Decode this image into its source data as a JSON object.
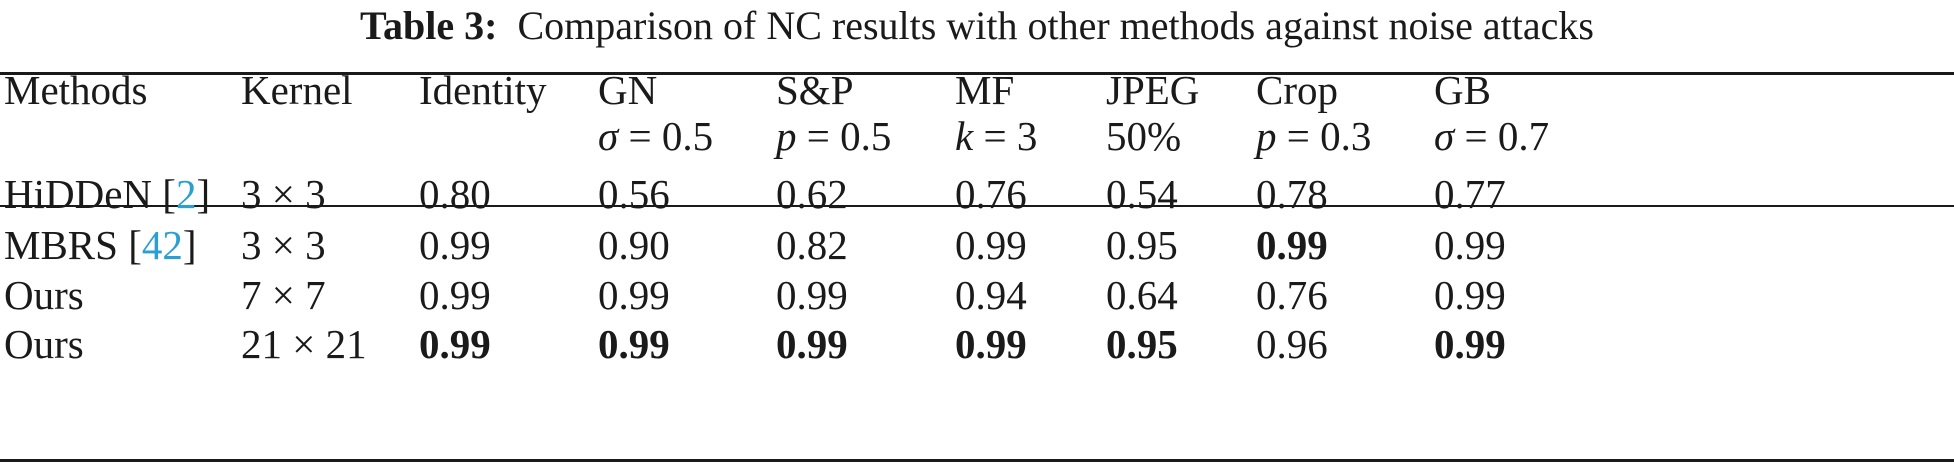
{
  "caption": {
    "label": "Table 3:",
    "text": "Comparison of NC results with other methods against noise attacks"
  },
  "header": {
    "methods": "Methods",
    "kernel": "Kernel",
    "identity": "Identity",
    "gn": "GN",
    "gn_param_var": "σ",
    "gn_param_val": " = 0.5",
    "sp": "S&P",
    "sp_param_var": "p",
    "sp_param_val": " = 0.5",
    "mf": "MF",
    "mf_param_var": "k",
    "mf_param_val": " = 3",
    "jpeg": "JPEG",
    "jpeg_param": "50%",
    "crop": "Crop",
    "crop_param_var": "p",
    "crop_param_val": " = 0.3",
    "gb": "GB",
    "gb_param_var": "σ",
    "gb_param_val": " = 0.7"
  },
  "rows": [
    {
      "method": "HiDDeN [",
      "ref": "2",
      "method_end": "]",
      "kernel": "3 × 3",
      "identity": "0.80",
      "gn": "0.56",
      "sp": "0.62",
      "mf": "0.76",
      "jpeg": "0.54",
      "crop": "0.78",
      "gb": "0.77"
    },
    {
      "method": "MBRS [",
      "ref": "42",
      "method_end": "]",
      "kernel": "3 × 3",
      "identity": "0.99",
      "gn": "0.90",
      "sp": "0.82",
      "mf": "0.99",
      "jpeg": "0.95",
      "crop": "0.99",
      "gb": "0.99"
    },
    {
      "method": "Ours",
      "kernel": "7 × 7",
      "identity": "0.99",
      "gn": "0.99",
      "sp": "0.99",
      "mf": "0.94",
      "jpeg": "0.64",
      "crop": "0.76",
      "gb": "0.99"
    },
    {
      "method": "Ours",
      "kernel": "21 × 21",
      "identity": "0.99",
      "gn": "0.99",
      "sp": "0.99",
      "mf": "0.99",
      "jpeg": "0.95",
      "crop": "0.96",
      "gb": "0.99"
    }
  ],
  "colors": {
    "text": "#1a1a1a",
    "reference_link": "#2a9fd0"
  }
}
